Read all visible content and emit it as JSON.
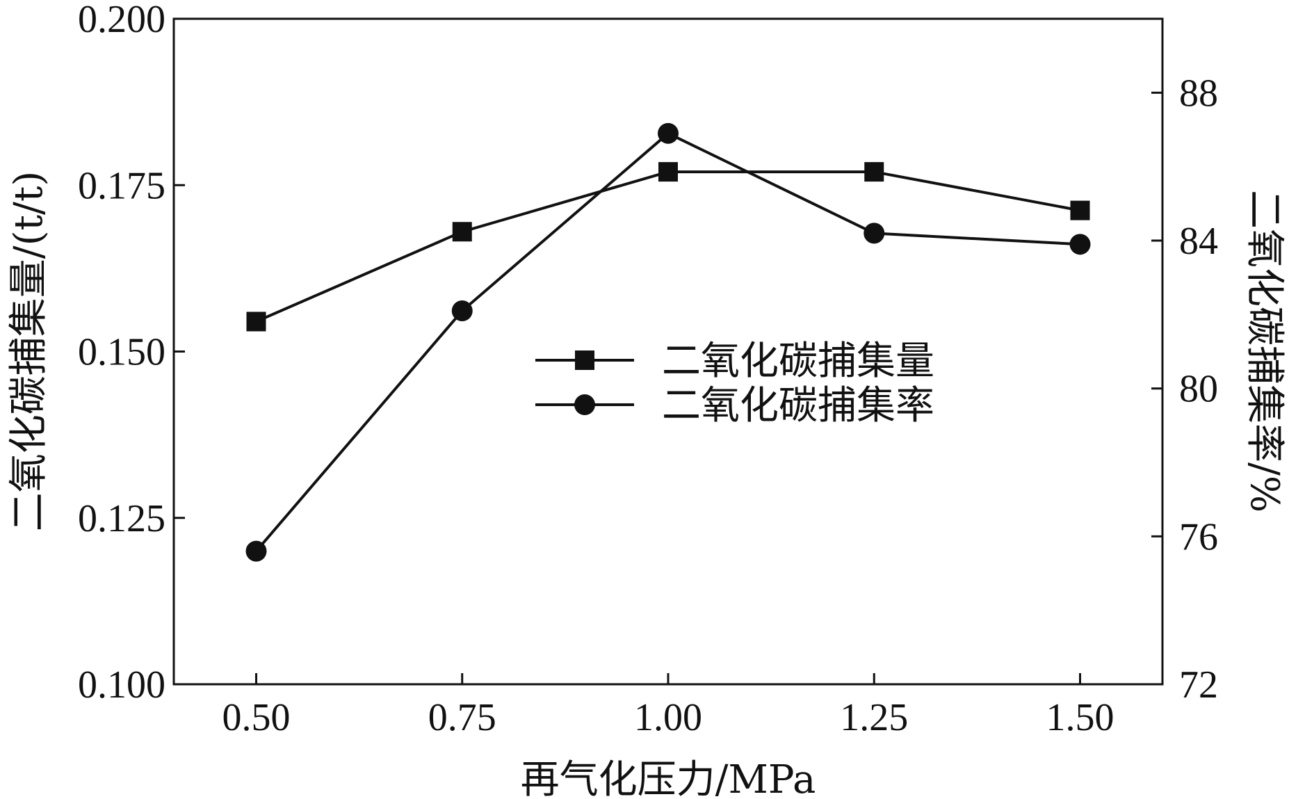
{
  "chart_data": {
    "type": "line",
    "x": [
      0.5,
      0.75,
      1.0,
      1.25,
      1.5
    ],
    "x_tick_labels": [
      "0.50",
      "0.75",
      "1.00",
      "1.25",
      "1.50"
    ],
    "xlim": [
      0.4,
      1.6
    ],
    "xlabel": "再气化压力/MPa",
    "ylabel_left": "二氧化碳捕集量/(t/t)",
    "ylabel_right": "二氧化碳捕集率/%",
    "ylim_left": [
      0.1,
      0.2
    ],
    "ylim_right": [
      72,
      90
    ],
    "left_ticks": [
      "0.100",
      "0.125",
      "0.150",
      "0.175",
      "0.200"
    ],
    "right_ticks": [
      "72",
      "76",
      "80",
      "84",
      "88"
    ],
    "grid": false,
    "legend_position": "center",
    "series": [
      {
        "name": "二氧化碳捕集量",
        "axis": "left",
        "marker": "square",
        "values": [
          0.1545,
          0.168,
          0.177,
          0.177,
          0.1712
        ]
      },
      {
        "name": "二氧化碳捕集率",
        "axis": "right",
        "marker": "circle",
        "values": [
          75.6,
          82.1,
          86.9,
          84.2,
          83.9
        ]
      }
    ]
  }
}
